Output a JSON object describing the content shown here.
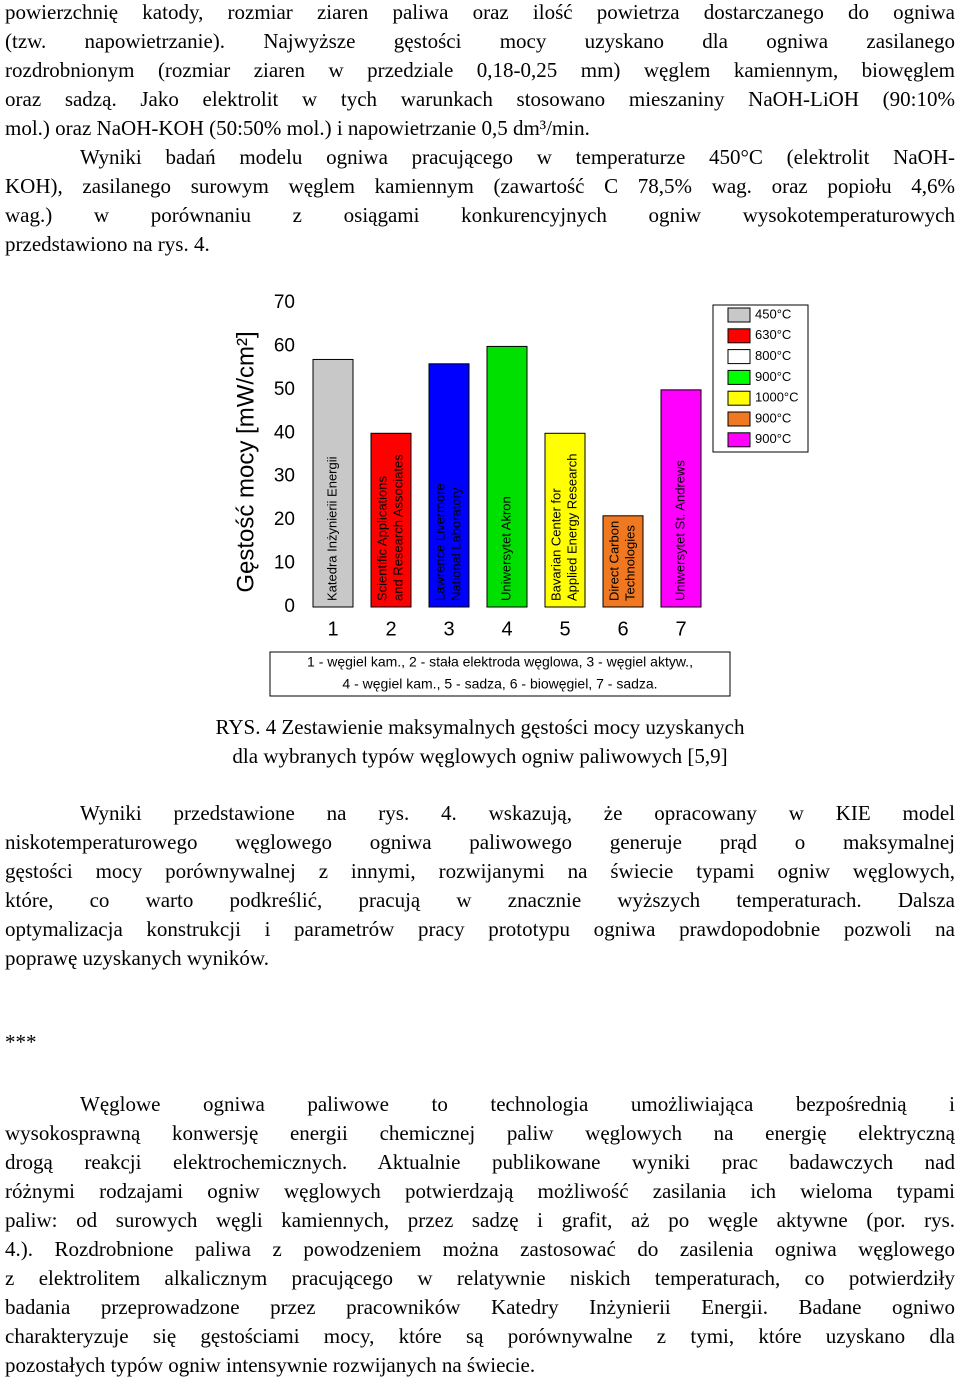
{
  "paragraphs_top": [
    {
      "lines": [
        "powierzchnię katody, rozmiar ziaren paliwa oraz ilość powietrza dostarczanego do ogniwa",
        "(tzw. napowietrzanie). Najwyższe gęstości mocy uzyskano dla ogniwa zasilanego",
        "rozdrobnionym (rozmiar ziaren w przedziale 0,18-0,25 mm) węglem kamiennym, biowęglem",
        "oraz sadzą. Jako elektrolit w tych warunkach stosowano mieszaniny NaOH-LiOH (90:10%",
        "mol.) oraz NaOH-KOH (50:50% mol.) i napowietrzanie 0,5 dm³/min."
      ]
    },
    {
      "lines": [
        "Wyniki badań modelu ogniwa pracującego w temperaturze 450°C (elektrolit NaOH-",
        "KOH), zasilanego surowym węglem kamiennym (zawartość C 78,5% wag. oraz popiołu 4,6%",
        "wag.) w porównaniu z osiągami konkurencyjnych ogniw wysokotemperaturowych",
        "przedstawiono na rys. 4."
      ]
    }
  ],
  "chart_data": {
    "type": "bar",
    "y_label": "Gęstość mocy [mW/cm²]",
    "categories": [
      "1",
      "2",
      "3",
      "4",
      "5",
      "6",
      "7"
    ],
    "values": [
      57,
      40,
      56,
      60,
      40,
      21,
      50
    ],
    "colors": [
      "#c8c8c8",
      "#ff0000",
      "#0000ff",
      "#00e000",
      "#ffff00",
      "#f07820",
      "#ff00ff"
    ],
    "bar_labels": [
      [
        "Katedra Inżynierii Energii"
      ],
      [
        "Scientific Applications",
        "and Research Associates"
      ],
      [
        "Lawrence Livermore",
        "National Laboratory"
      ],
      [
        "Uniwersytet Akron"
      ],
      [
        "Bavarian Center for",
        "Applied Energy Research"
      ],
      [
        "Direct Carbon",
        "Technologies"
      ],
      [
        "Uniwersytet St. Andrews"
      ]
    ],
    "ylim": [
      0,
      70
    ],
    "yticks": [
      0,
      10,
      20,
      30,
      40,
      50,
      60,
      70
    ],
    "legend": [
      {
        "label": "450°C",
        "color": "#c8c8c8"
      },
      {
        "label": "630°C",
        "color": "#ff0000"
      },
      {
        "label": "800°C",
        "color": "#ffffff"
      },
      {
        "label": "900°C",
        "color": "#00ff00"
      },
      {
        "label": "1000°C",
        "color": "#ffff00"
      },
      {
        "label": "900°C",
        "color": "#f07820"
      },
      {
        "label": "900°C",
        "color": "#ff00ff"
      }
    ],
    "note": [
      "1 - węgiel kam., 2 - stała elektroda węglowa, 3 - węgiel aktyw.,",
      "4 - węgiel kam., 5 - sadza, 6 - biowęgiel, 7 - sadza."
    ]
  },
  "caption": [
    "RYS. 4 Zestawienie maksymalnych gęstości mocy uzyskanych",
    "dla wybranych typów węglowych ogniw paliwowych [5,9]"
  ],
  "paragraphs_middle": [
    {
      "lines": [
        "Wyniki przedstawione na rys. 4. wskazują, że opracowany w KIE model",
        "niskotemperaturowego węglowego ogniwa paliwowego generuje prąd o maksymalnej",
        "gęstości mocy porównywalnej z innymi, rozwijanymi na świecie typami ogniw węglowych,",
        "które, co warto podkreślić, pracują w znacznie wyższych temperaturach. Dalsza",
        "optymalizacja konstrukcji i parametrów pracy prototypu ogniwa prawdopodobnie pozwoli na",
        "poprawę uzyskanych wyników."
      ]
    }
  ],
  "separator": "***",
  "paragraphs_bottom": [
    {
      "lines": [
        "Węglowe ogniwa paliwowe to technologia umożliwiająca bezpośrednią i",
        "wysokosprawną konwersję energii chemicznej paliw węglowych na energię elektryczną",
        "drogą reakcji elektrochemicznych. Aktualnie publikowane wyniki prac badawczych nad",
        "różnymi rodzajami ogniw węglowych potwierdzają możliwość zasilania ich wieloma typami",
        "paliw: od surowych węgli kamiennych, przez sadzę i grafit, aż po węgle aktywne (por. rys.",
        "4.). Rozdrobnione paliwa z powodzeniem można zastosować do zasilenia ogniwa węglowego",
        "z elektrolitem alkalicznym pracującego w relatywnie niskich temperaturach, co potwierdziły",
        "badania przeprowadzone przez pracowników Katedry Inżynierii Energii. Badane ogniwo",
        "charakteryzuje się gęstościami mocy, które są porównywalne z tymi, które uzyskano dla",
        "pozostałych typów ogniw intensywnie rozwijanych na świecie."
      ]
    }
  ]
}
